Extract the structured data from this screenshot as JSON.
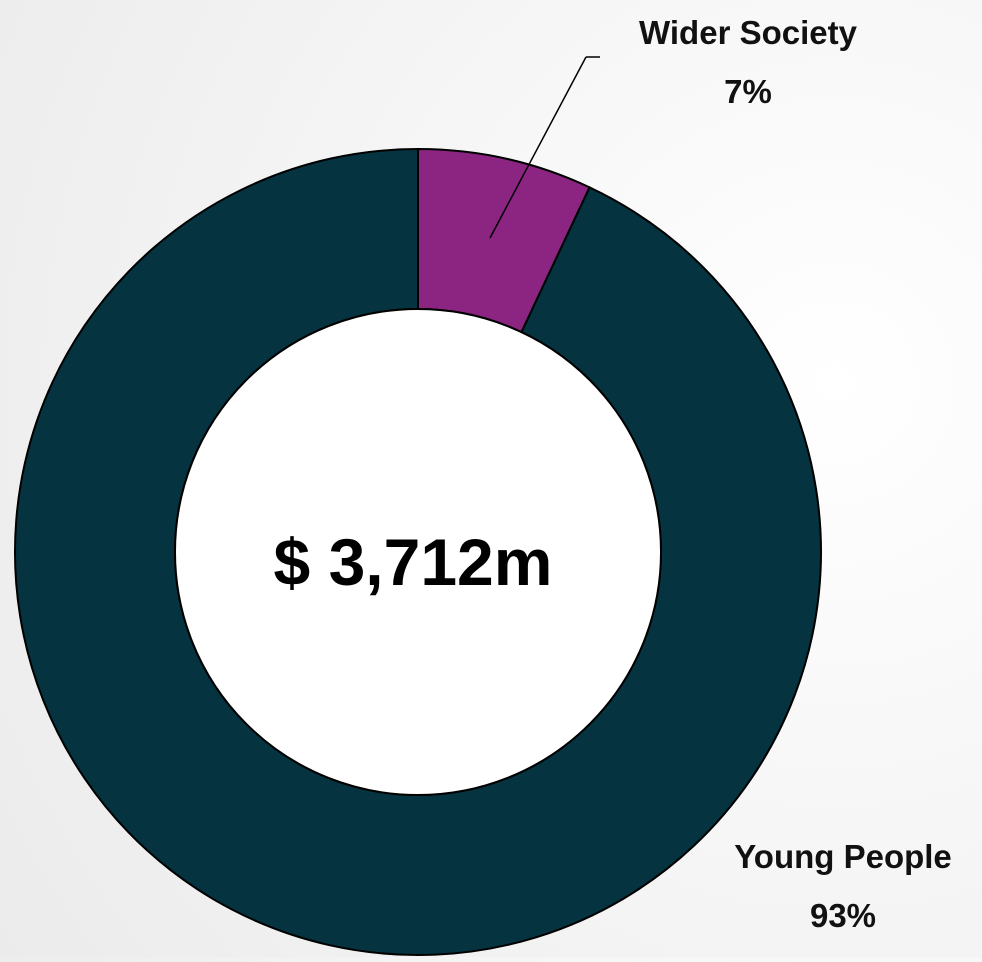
{
  "chart_data": {
    "type": "pie",
    "variant": "donut",
    "center_text": "$ 3,712m",
    "start_angle_deg": 0,
    "direction": "clockwise",
    "slices": [
      {
        "name": "Wider Society",
        "value": 7,
        "value_label": "7%",
        "color": "#8B2581"
      },
      {
        "name": "Young People",
        "value": 93,
        "value_label": "93%",
        "color": "#05333F"
      }
    ],
    "legend": "none",
    "data_labels": "outside with leader line"
  },
  "colors": {
    "outline": "#000000",
    "hole": "#ffffff",
    "leader_line": "#000000"
  }
}
